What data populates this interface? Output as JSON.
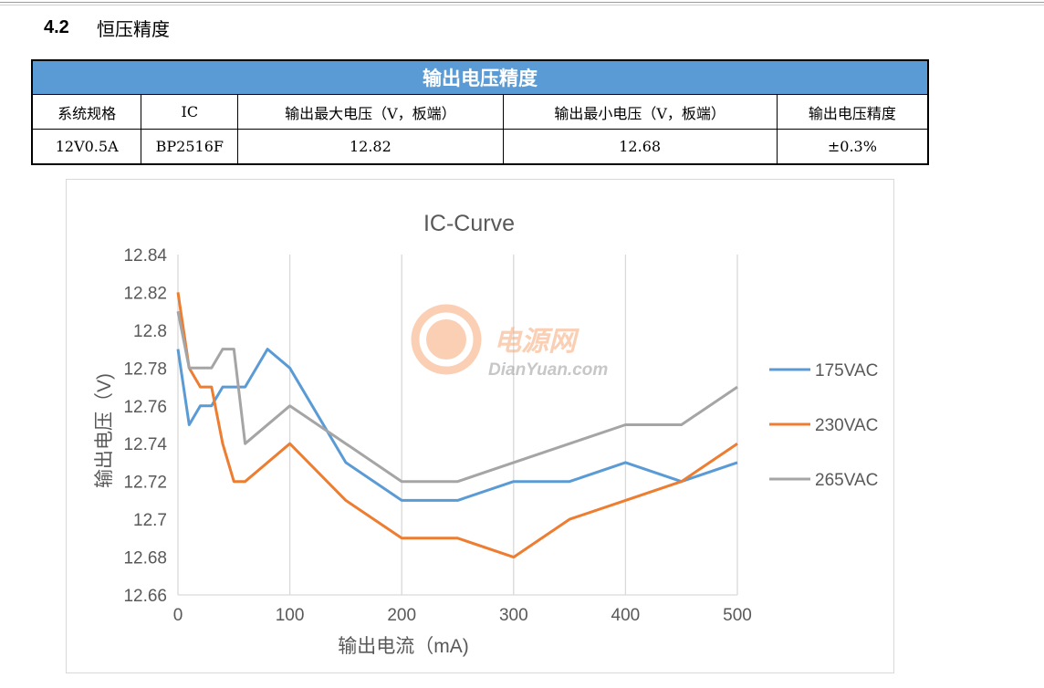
{
  "section": {
    "number": "4.2",
    "title": "恒压精度"
  },
  "table": {
    "banner": "输出电压精度",
    "headers": [
      "系统规格",
      "IC",
      "输出最大电压（V，板端）",
      "输出最小电压（V，板端）",
      "输出电压精度"
    ],
    "row": [
      "12V0.5A",
      "BP2516F",
      "12.82",
      "12.68",
      "±0.3%"
    ]
  },
  "watermark": {
    "brand": "电源网",
    "site": "DianYuan.com"
  },
  "chart_data": {
    "type": "line",
    "title": "IC-Curve",
    "xlabel": "输出电流（mA)",
    "ylabel": "输出电压（V)",
    "xlim": [
      0,
      500
    ],
    "ylim": [
      12.66,
      12.84
    ],
    "x_ticks": [
      "0",
      "100",
      "200",
      "300",
      "400",
      "500"
    ],
    "y_ticks": [
      "12.66",
      "12.68",
      "12.7",
      "12.72",
      "12.74",
      "12.76",
      "12.78",
      "12.8",
      "12.82",
      "12.84"
    ],
    "grid": "vertical",
    "legend": "right",
    "series": [
      {
        "name": "175VAC",
        "color": "#5b9bd5",
        "x": [
          0,
          10,
          20,
          30,
          40,
          50,
          60,
          80,
          100,
          150,
          200,
          250,
          300,
          350,
          400,
          450,
          500
        ],
        "y": [
          12.79,
          12.75,
          12.76,
          12.76,
          12.77,
          12.77,
          12.77,
          12.79,
          12.78,
          12.73,
          12.71,
          12.71,
          12.72,
          12.72,
          12.73,
          12.72,
          12.73
        ]
      },
      {
        "name": "230VAC",
        "color": "#ed7d31",
        "x": [
          0,
          10,
          20,
          30,
          40,
          50,
          60,
          100,
          150,
          200,
          250,
          300,
          350,
          400,
          450,
          500
        ],
        "y": [
          12.82,
          12.78,
          12.77,
          12.77,
          12.74,
          12.72,
          12.72,
          12.74,
          12.71,
          12.69,
          12.69,
          12.68,
          12.7,
          12.71,
          12.72,
          12.74
        ]
      },
      {
        "name": "265VAC",
        "color": "#a5a5a5",
        "x": [
          0,
          10,
          20,
          30,
          40,
          50,
          60,
          100,
          150,
          200,
          250,
          300,
          350,
          400,
          450,
          500
        ],
        "y": [
          12.81,
          12.78,
          12.78,
          12.78,
          12.79,
          12.79,
          12.74,
          12.76,
          12.74,
          12.72,
          12.72,
          12.73,
          12.74,
          12.75,
          12.75,
          12.77
        ]
      }
    ]
  }
}
